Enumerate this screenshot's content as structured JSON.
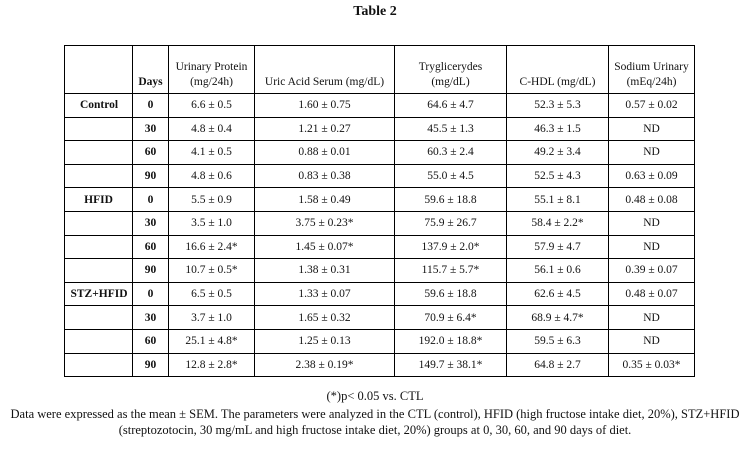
{
  "title": "Table 2",
  "columns": [
    "",
    "Days",
    "Urinary Protein\n(mg/24h)",
    "Uric Acid Serum (mg/dL)",
    "Tryglicerydes\n(mg/dL)",
    "C-HDL (mg/dL)",
    "Sodium Urinary\n(mEq/24h)"
  ],
  "groups": [
    {
      "name": "Control",
      "rows": [
        [
          "0",
          "6.6 ± 0.5",
          "1.60 ± 0.75",
          "64.6 ± 4.7",
          "52.3 ± 5.3",
          "0.57 ± 0.02"
        ],
        [
          "30",
          "4.8 ± 0.4",
          "1.21 ± 0.27",
          "45.5 ± 1.3",
          "46.3 ± 1.5",
          "ND"
        ],
        [
          "60",
          "4.1 ± 0.5",
          "0.88 ± 0.01",
          "60.3 ± 2.4",
          "49.2 ± 3.4",
          "ND"
        ],
        [
          "90",
          "4.8 ± 0.6",
          "0.83 ± 0.38",
          "55.0 ± 4.5",
          "52.5 ± 4.3",
          "0.63 ± 0.09"
        ]
      ]
    },
    {
      "name": "HFID",
      "rows": [
        [
          "0",
          "5.5 ± 0.9",
          "1.58 ± 0.49",
          "59.6 ± 18.8",
          "55.1 ± 8.1",
          "0.48 ± 0.08"
        ],
        [
          "30",
          "3.5 ± 1.0",
          "3.75 ± 0.23*",
          "75.9 ± 26.7",
          "58.4 ± 2.2*",
          "ND"
        ],
        [
          "60",
          "16.6 ± 2.4*",
          "1.45 ± 0.07*",
          "137.9 ± 2.0*",
          "57.9 ± 4.7",
          "ND"
        ],
        [
          "90",
          "10.7 ± 0.5*",
          "1.38 ± 0.31",
          "115.7 ± 5.7*",
          "56.1 ± 0.6",
          "0.39 ± 0.07"
        ]
      ]
    },
    {
      "name": "STZ+HFID",
      "rows": [
        [
          "0",
          "6.5 ± 0.5",
          "1.33 ± 0.07",
          "59.6 ± 18.8",
          "62.6 ± 4.5",
          "0.48 ± 0.07"
        ],
        [
          "30",
          "3.7 ± 1.0",
          "1.65 ± 0.32",
          "70.9 ± 6.4*",
          "68.9 ± 4.7*",
          "ND"
        ],
        [
          "60",
          "25.1 ± 4.8*",
          "1.25 ± 0.13",
          "192.0 ± 18.8*",
          "59.5 ± 6.3",
          "ND"
        ],
        [
          "90",
          "12.8 ± 2.8*",
          "2.38 ± 0.19*",
          "149.7 ± 38.1*",
          "64.8 ± 2.7",
          "0.35 ± 0.03*"
        ]
      ]
    }
  ],
  "footnote_significance": "(*)p< 0.05 vs. CTL",
  "footnote_description": "Data were expressed as the mean ± SEM. The parameters were analyzed in the CTL (control), HFID (high fructose intake diet, 20%), STZ+HFID (streptozotocin, 30 mg/mL and high fructose intake diet, 20%) groups at 0, 30, 60, and 90 days of diet."
}
